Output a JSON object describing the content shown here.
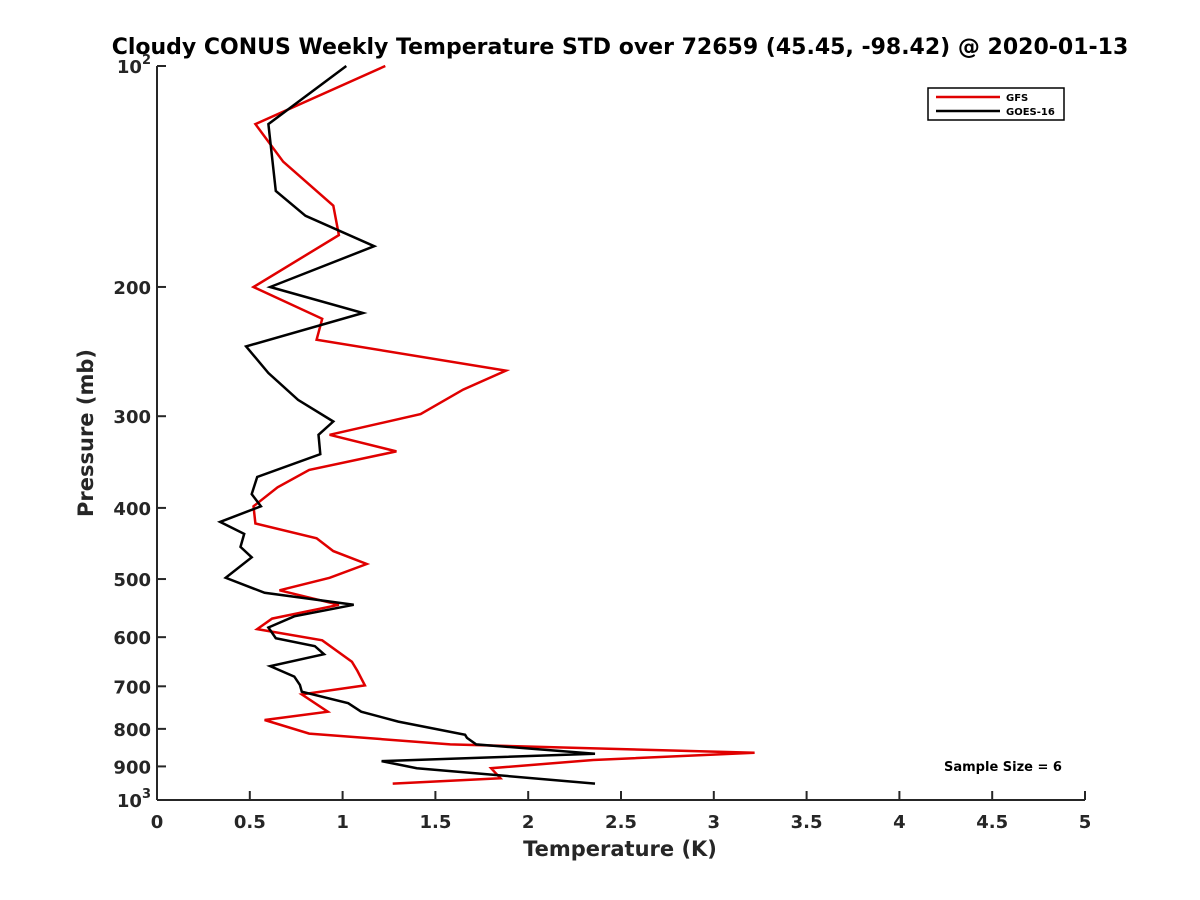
{
  "chart_data": {
    "type": "line",
    "title": "Cloudy CONUS Weekly Temperature STD over 72659 (45.45, -98.42) @ 2020-01-13",
    "xlabel": "Temperature (K)",
    "ylabel": "Pressure (mb)",
    "xlim": [
      0,
      5
    ],
    "ylim": [
      100,
      1000
    ],
    "y_scale": "log",
    "y_reversed": true,
    "x_ticks": [
      {
        "value": 0,
        "label": "0"
      },
      {
        "value": 0.5,
        "label": "0.5"
      },
      {
        "value": 1,
        "label": "1"
      },
      {
        "value": 1.5,
        "label": "1.5"
      },
      {
        "value": 2,
        "label": "2"
      },
      {
        "value": 2.5,
        "label": "2.5"
      },
      {
        "value": 3,
        "label": "3"
      },
      {
        "value": 3.5,
        "label": "3.5"
      },
      {
        "value": 4,
        "label": "4"
      },
      {
        "value": 4.5,
        "label": "4.5"
      },
      {
        "value": 5,
        "label": "5"
      }
    ],
    "y_ticks": [
      {
        "value": 100,
        "base": "10",
        "exp": "2"
      },
      {
        "value": 200,
        "base": "200",
        "exp": ""
      },
      {
        "value": 300,
        "base": "300",
        "exp": ""
      },
      {
        "value": 400,
        "base": "400",
        "exp": ""
      },
      {
        "value": 500,
        "base": "500",
        "exp": ""
      },
      {
        "value": 600,
        "base": "600",
        "exp": ""
      },
      {
        "value": 700,
        "base": "700",
        "exp": ""
      },
      {
        "value": 800,
        "base": "800",
        "exp": ""
      },
      {
        "value": 900,
        "base": "900",
        "exp": ""
      },
      {
        "value": 1000,
        "base": "10",
        "exp": "3"
      }
    ],
    "grid": false,
    "legend_position": "top-right",
    "series": [
      {
        "name": "GFS",
        "color": "#e00000",
        "points": [
          [
            1.23,
            100
          ],
          [
            0.53,
            120
          ],
          [
            0.68,
            135
          ],
          [
            0.95,
            155
          ],
          [
            0.98,
            170
          ],
          [
            0.52,
            200
          ],
          [
            0.89,
            221
          ],
          [
            0.86,
            236
          ],
          [
            1.88,
            260
          ],
          [
            1.65,
            276
          ],
          [
            1.42,
            298
          ],
          [
            0.93,
            318
          ],
          [
            1.29,
            335
          ],
          [
            0.82,
            355
          ],
          [
            0.65,
            375
          ],
          [
            0.52,
            398
          ],
          [
            0.53,
            420
          ],
          [
            0.86,
            440
          ],
          [
            0.95,
            458
          ],
          [
            1.13,
            477
          ],
          [
            0.93,
            498
          ],
          [
            0.66,
            518
          ],
          [
            0.98,
            542
          ],
          [
            0.62,
            566
          ],
          [
            0.54,
            585
          ],
          [
            0.89,
            606
          ],
          [
            1.05,
            648
          ],
          [
            1.08,
            667
          ],
          [
            1.12,
            698
          ],
          [
            0.78,
            718
          ],
          [
            0.92,
            758
          ],
          [
            0.58,
            778
          ],
          [
            0.82,
            812
          ],
          [
            1.58,
            840
          ],
          [
            3.22,
            862
          ],
          [
            2.35,
            882
          ],
          [
            1.8,
            905
          ],
          [
            1.85,
            934
          ],
          [
            1.27,
            950
          ]
        ]
      },
      {
        "name": "GOES-16",
        "color": "#000000",
        "points": [
          [
            1.02,
            100
          ],
          [
            0.6,
            120
          ],
          [
            0.64,
            148
          ],
          [
            0.8,
            160
          ],
          [
            1.17,
            176
          ],
          [
            0.61,
            200
          ],
          [
            1.11,
            217
          ],
          [
            0.48,
            241
          ],
          [
            0.6,
            262
          ],
          [
            0.76,
            285
          ],
          [
            0.95,
            305
          ],
          [
            0.87,
            318
          ],
          [
            0.88,
            338
          ],
          [
            0.54,
            363
          ],
          [
            0.51,
            383
          ],
          [
            0.56,
            398
          ],
          [
            0.34,
            418
          ],
          [
            0.47,
            434
          ],
          [
            0.45,
            452
          ],
          [
            0.51,
            467
          ],
          [
            0.37,
            498
          ],
          [
            0.58,
            522
          ],
          [
            1.06,
            542
          ],
          [
            0.74,
            562
          ],
          [
            0.6,
            582
          ],
          [
            0.64,
            602
          ],
          [
            0.85,
            617
          ],
          [
            0.9,
            633
          ],
          [
            0.61,
            657
          ],
          [
            0.74,
            679
          ],
          [
            0.77,
            697
          ],
          [
            0.78,
            712
          ],
          [
            1.03,
            738
          ],
          [
            1.1,
            758
          ],
          [
            1.3,
            782
          ],
          [
            1.66,
            815
          ],
          [
            1.67,
            823
          ],
          [
            1.72,
            840
          ],
          [
            2.36,
            865
          ],
          [
            1.21,
            885
          ],
          [
            1.4,
            905
          ],
          [
            2.36,
            950
          ]
        ]
      }
    ],
    "annotations": [
      {
        "text": "Sample Size = 6",
        "position": "bottom-right"
      }
    ]
  }
}
